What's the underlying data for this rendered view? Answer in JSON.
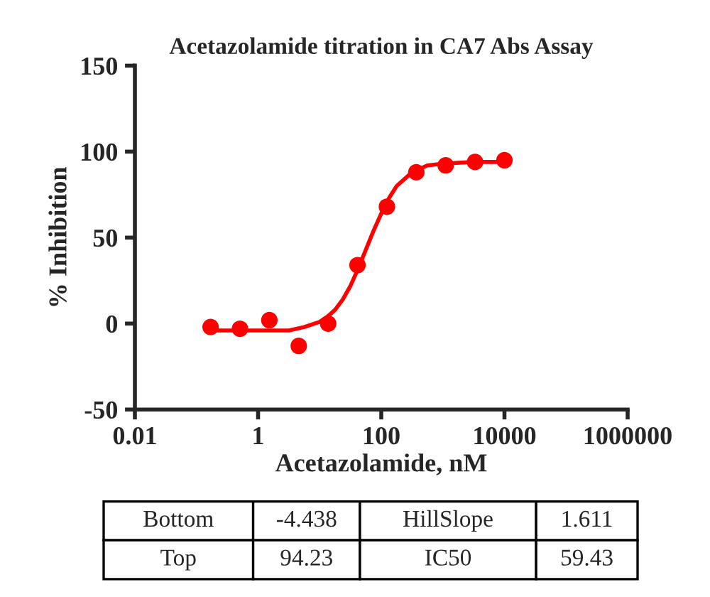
{
  "chart_data": {
    "type": "scatter",
    "title": "Acetazolamide titration in CA7 Abs Assay",
    "xlabel": "Acetazolamide, nM",
    "ylabel": "% Inhibition",
    "log": "x",
    "xlim": [
      0.01,
      1000000
    ],
    "xticks": [
      0.01,
      1,
      100,
      10000,
      1000000
    ],
    "ylim": [
      -50,
      150
    ],
    "yticks": [
      -50,
      0,
      50,
      100,
      150
    ],
    "grid": false,
    "legend": false,
    "marker": "circle",
    "series": [
      {
        "color": "#ff0000",
        "x": [
          0.1694,
          0.5081,
          1.524,
          4.572,
          13.72,
          41.15,
          123.5,
          370.4,
          1111,
          3333,
          10000
        ],
        "values": [
          -2,
          -3,
          2,
          -13,
          0,
          34,
          68,
          88,
          92,
          94,
          95
        ]
      },
      {
        "type": "line",
        "color": "#ff0000",
        "marker": "none",
        "line_style": "solid",
        "x": [
          0.1778,
          0.5623,
          1,
          1.778,
          3.162,
          5.623,
          10,
          13.34,
          17.78,
          23.71,
          31.62,
          42.17,
          56.23,
          74.99,
          100,
          133.4,
          177.8,
          316.2,
          562.3,
          1000,
          3162,
          10000
        ],
        "values": [
          -4,
          -4,
          -4,
          -4,
          -4,
          -2,
          1,
          4,
          8,
          14,
          22,
          32,
          43,
          54,
          64,
          73,
          80,
          88,
          92,
          93,
          94,
          94
        ]
      }
    ],
    "annotations": [
      "Bottom",
      "-4.438",
      "HillSlope",
      "1.611",
      "Top",
      "94.23",
      "IC50",
      "59.43"
    ]
  }
}
